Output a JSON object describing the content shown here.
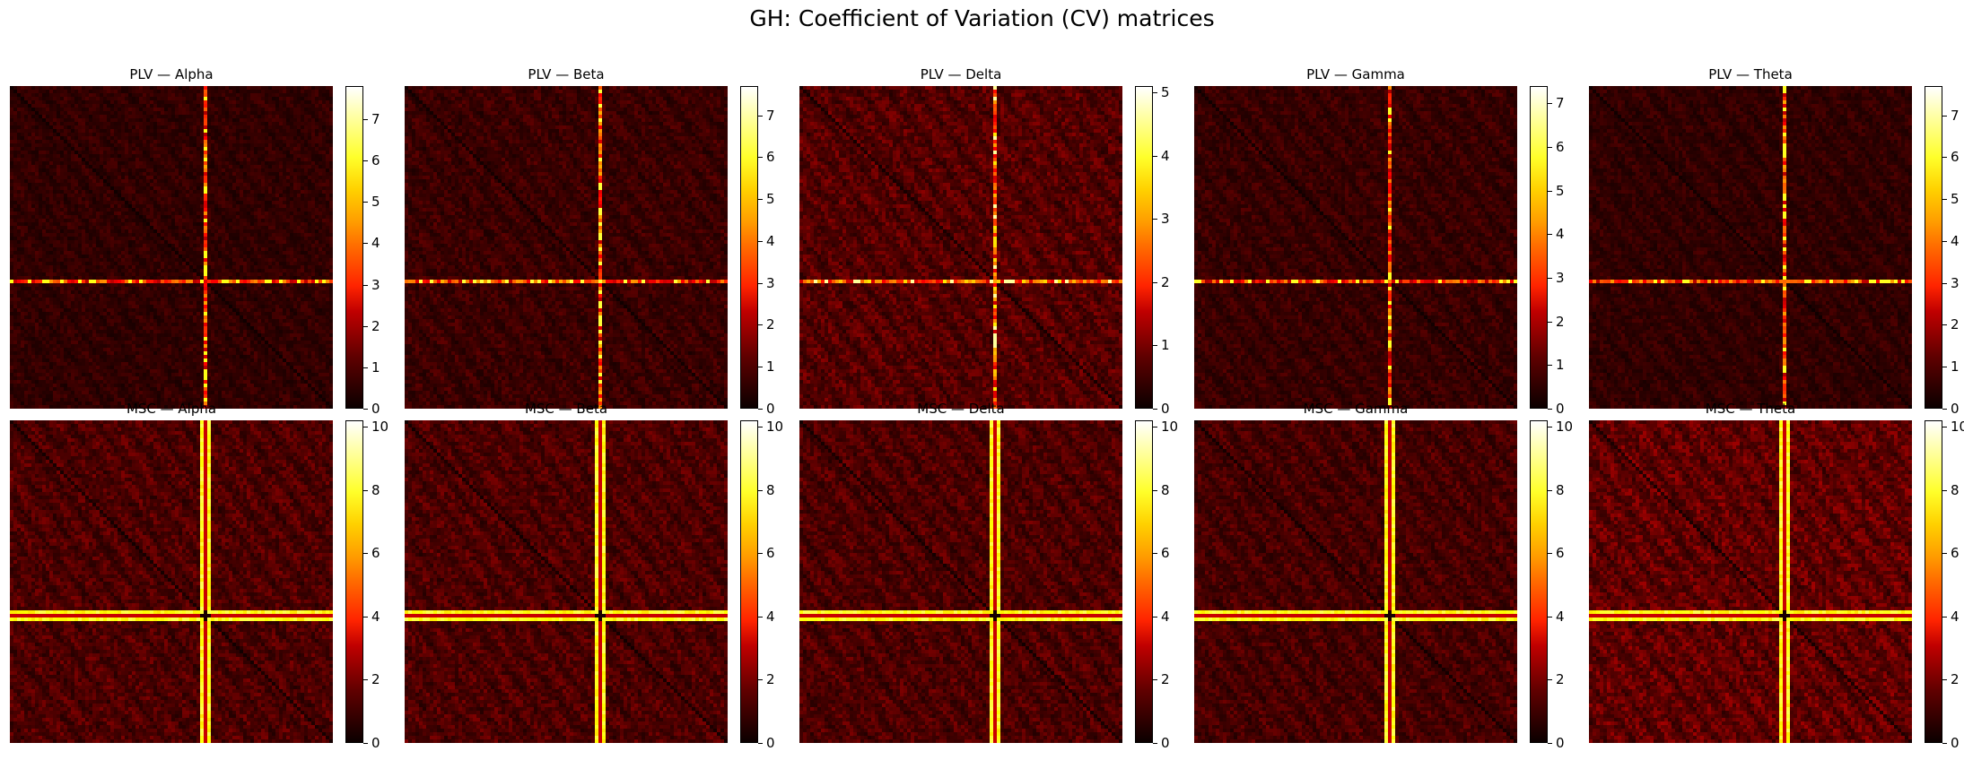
{
  "title": "GH: Coefficient of Variation (CV) matrices",
  "colormap": {
    "name": "hot",
    "stops": [
      "#0b0000",
      "#600000",
      "#c00000",
      "#ff2400",
      "#ff6a00",
      "#ff9d00",
      "#ffd100",
      "#ffff2a",
      "#ffff9c",
      "#ffffff"
    ]
  },
  "chart_data": [
    {
      "type": "heatmap",
      "title": "PLV — Alpha",
      "vmin": 0,
      "vmax": 7.8,
      "cbar_ticks": [
        0,
        1,
        2,
        3,
        4,
        5,
        6,
        7
      ],
      "band_row": 0.6,
      "band_col": 0.6,
      "band_value": 3.2,
      "band_peak": 6.0,
      "background_mean": 0.45
    },
    {
      "type": "heatmap",
      "title": "PLV — Beta",
      "vmin": 0,
      "vmax": 7.7,
      "cbar_ticks": [
        0,
        1,
        2,
        3,
        4,
        5,
        6,
        7
      ],
      "band_row": 0.6,
      "band_col": 0.6,
      "band_value": 3.3,
      "band_peak": 6.2,
      "background_mean": 0.55
    },
    {
      "type": "heatmap",
      "title": "PLV — Delta",
      "vmin": 0,
      "vmax": 5.1,
      "cbar_ticks": [
        0,
        1,
        2,
        3,
        4,
        5
      ],
      "band_row": 0.6,
      "band_col": 0.6,
      "band_value": 2.5,
      "band_peak": 4.6,
      "background_mean": 0.55
    },
    {
      "type": "heatmap",
      "title": "PLV — Gamma",
      "vmin": 0,
      "vmax": 7.4,
      "cbar_ticks": [
        0,
        1,
        2,
        3,
        4,
        5,
        6,
        7
      ],
      "band_row": 0.6,
      "band_col": 0.6,
      "band_value": 3.0,
      "band_peak": 5.8,
      "background_mean": 0.5
    },
    {
      "type": "heatmap",
      "title": "PLV — Theta",
      "vmin": 0,
      "vmax": 7.7,
      "cbar_ticks": [
        0,
        1,
        2,
        3,
        4,
        5,
        6,
        7
      ],
      "band_row": 0.6,
      "band_col": 0.6,
      "band_value": 3.2,
      "band_peak": 6.0,
      "background_mean": 0.45
    },
    {
      "type": "heatmap",
      "title": "MSC — Alpha",
      "vmin": 0,
      "vmax": 10.2,
      "cbar_ticks": [
        0,
        2,
        4,
        6,
        8,
        10
      ],
      "band_row": 0.6,
      "band_col": 0.6,
      "band_value": 8.5,
      "band_peak": 10.0,
      "background_mean": 1.0
    },
    {
      "type": "heatmap",
      "title": "MSC — Beta",
      "vmin": 0,
      "vmax": 10.2,
      "cbar_ticks": [
        0,
        2,
        4,
        6,
        8,
        10
      ],
      "band_row": 0.6,
      "band_col": 0.6,
      "band_value": 8.5,
      "band_peak": 10.0,
      "background_mean": 1.0
    },
    {
      "type": "heatmap",
      "title": "MSC — Delta",
      "vmin": 0,
      "vmax": 10.2,
      "cbar_ticks": [
        0,
        2,
        4,
        6,
        8,
        10
      ],
      "band_row": 0.6,
      "band_col": 0.6,
      "band_value": 8.5,
      "band_peak": 10.0,
      "background_mean": 1.0
    },
    {
      "type": "heatmap",
      "title": "MSC — Gamma",
      "vmin": 0,
      "vmax": 10.2,
      "cbar_ticks": [
        0,
        2,
        4,
        6,
        8,
        10
      ],
      "band_row": 0.6,
      "band_col": 0.6,
      "band_value": 8.5,
      "band_peak": 10.0,
      "background_mean": 0.9
    },
    {
      "type": "heatmap",
      "title": "MSC — Theta",
      "vmin": 0,
      "vmax": 10.2,
      "cbar_ticks": [
        0,
        2,
        4,
        6,
        8,
        10
      ],
      "band_row": 0.6,
      "band_col": 0.6,
      "band_value": 8.5,
      "band_peak": 10.0,
      "background_mean": 1.3
    }
  ]
}
